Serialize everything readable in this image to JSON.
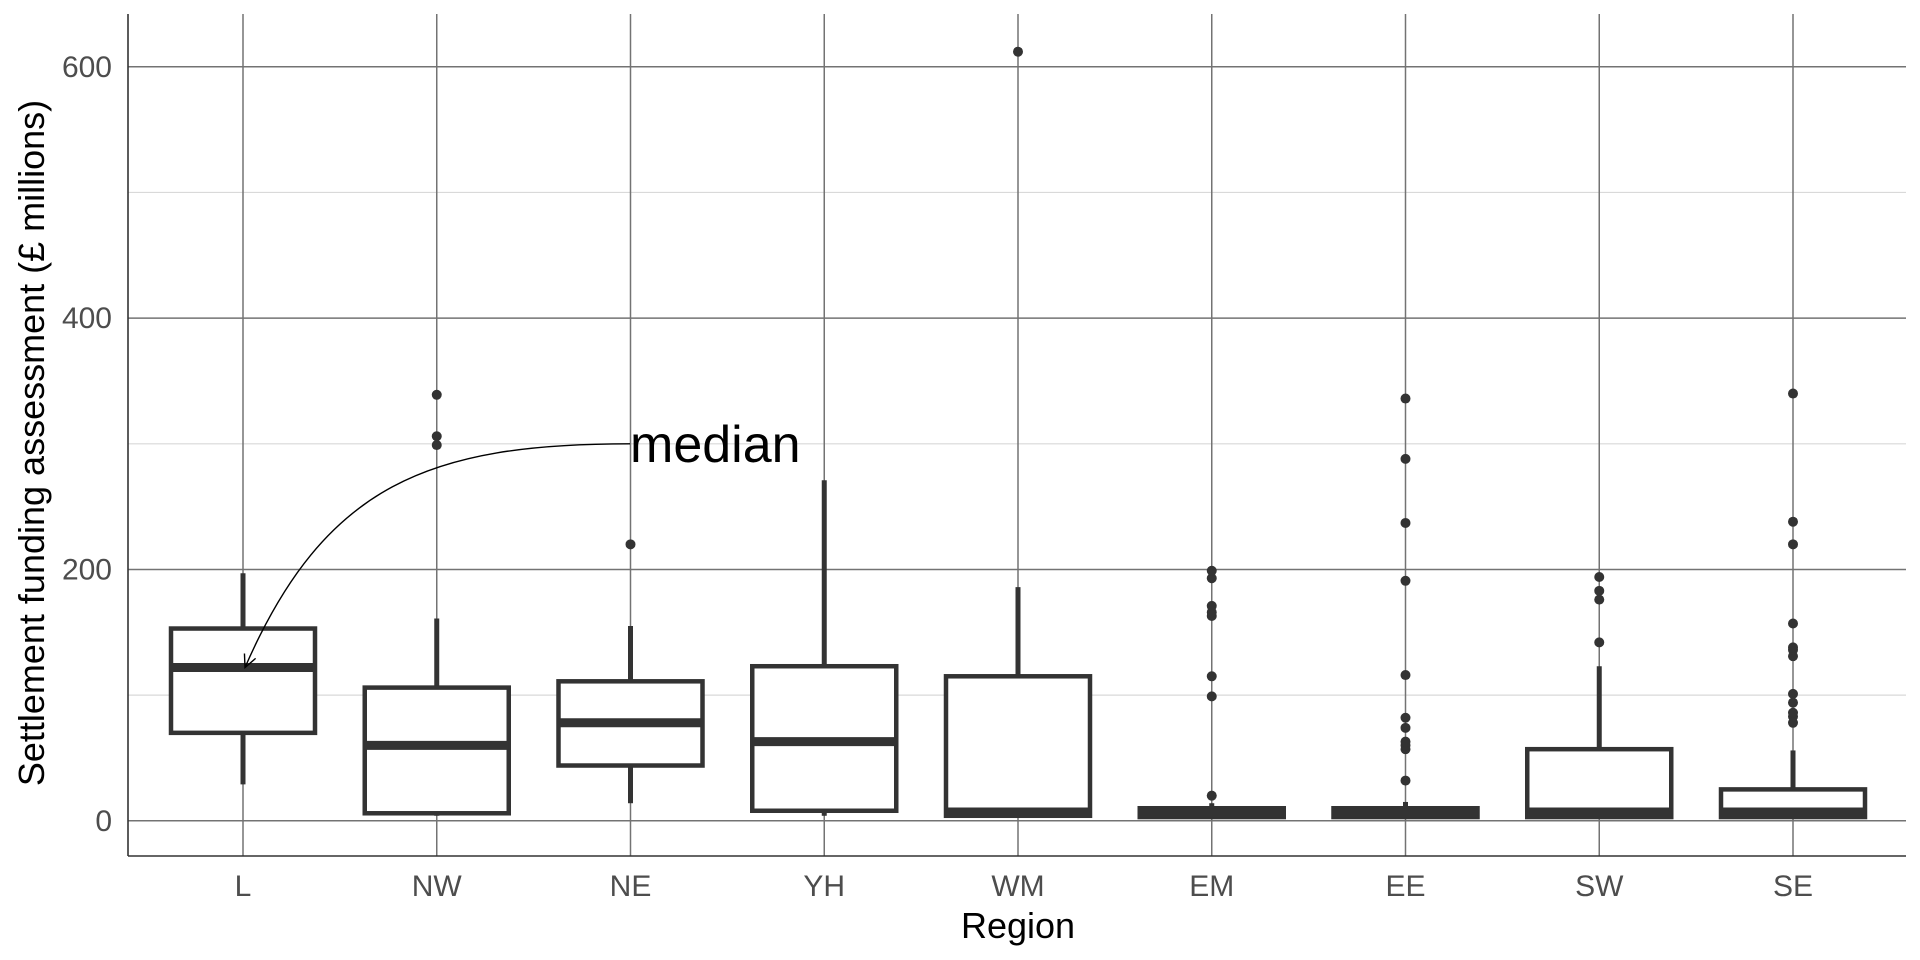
{
  "chart_data": {
    "type": "boxplot",
    "title": "",
    "xlabel": "Region",
    "ylabel": "Settlement funding assessment (£ millions)",
    "ylim": [
      -28,
      642
    ],
    "y_ticks": [
      0,
      200,
      400,
      600
    ],
    "grid": true,
    "categories": [
      "L",
      "NW",
      "NE",
      "YH",
      "WM",
      "EM",
      "EE",
      "SW",
      "SE"
    ],
    "boxes": [
      {
        "category": "L",
        "whisker_low": 29,
        "q1": 70,
        "median": 122,
        "q3": 153,
        "whisker_high": 197,
        "outliers": []
      },
      {
        "category": "NW",
        "whisker_low": 4,
        "q1": 6,
        "median": 60,
        "q3": 106,
        "whisker_high": 161,
        "outliers": [
          299,
          306,
          339
        ]
      },
      {
        "category": "NE",
        "whisker_low": 14,
        "q1": 44,
        "median": 78,
        "q3": 111,
        "whisker_high": 155,
        "outliers": [
          220
        ]
      },
      {
        "category": "YH",
        "whisker_low": 4,
        "q1": 8,
        "median": 63,
        "q3": 123,
        "whisker_high": 271,
        "outliers": []
      },
      {
        "category": "WM",
        "whisker_low": 3,
        "q1": 4,
        "median": 7,
        "q3": 115,
        "whisker_high": 186,
        "outliers": [
          612
        ]
      },
      {
        "category": "EM",
        "whisker_low": 2,
        "q1": 3,
        "median": 6,
        "q3": 10,
        "whisker_high": 14,
        "outliers": [
          20,
          99,
          115,
          163,
          166,
          171,
          193,
          199
        ]
      },
      {
        "category": "EE",
        "whisker_low": 2,
        "q1": 3,
        "median": 6,
        "q3": 10,
        "whisker_high": 15,
        "outliers": [
          32,
          57,
          60,
          63,
          74,
          82,
          116,
          191,
          237,
          288,
          336
        ]
      },
      {
        "category": "SW",
        "whisker_low": 2,
        "q1": 3,
        "median": 7,
        "q3": 57,
        "whisker_high": 123,
        "outliers": [
          142,
          176,
          183,
          194
        ]
      },
      {
        "category": "SE",
        "whisker_low": 2,
        "q1": 3,
        "median": 7,
        "q3": 25,
        "whisker_high": 56,
        "outliers": [
          78,
          83,
          86,
          94,
          101,
          131,
          136,
          138,
          157,
          220,
          238,
          340
        ]
      }
    ],
    "annotations": [
      {
        "text": "median",
        "label_y": 300,
        "arrow_to_category": "L",
        "arrow_to_value": 122
      }
    ],
    "colors": {
      "box_stroke": "#333333",
      "point": "#333333",
      "grid_major": "#737373",
      "grid_minor": "#d9d9d9",
      "axis_line": "#333333"
    }
  }
}
